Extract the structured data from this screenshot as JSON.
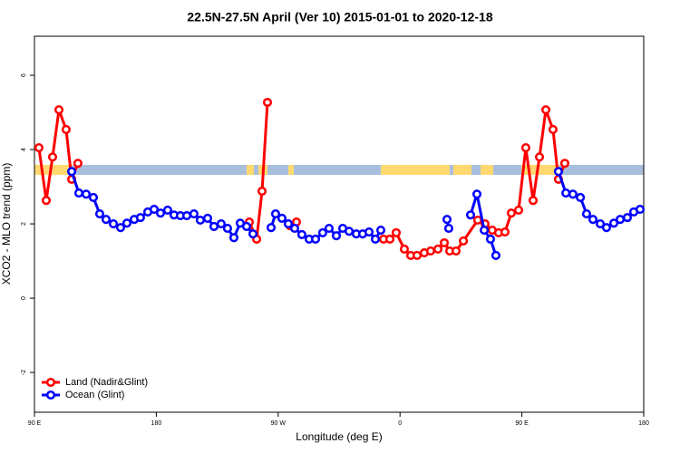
{
  "chart_data": {
    "type": "line",
    "title": "22.5N-27.5N April (Ver 10)   2015-01-01 to 2020-12-18",
    "xlabel": "Longitude (deg E)",
    "ylabel": "XCO2 - MLO trend (ppm)",
    "xlim": [
      90,
      540
    ],
    "ylim": [
      -3.07,
      7.05
    ],
    "xticks": [
      {
        "value": 90,
        "label": "90 E"
      },
      {
        "value": 180,
        "label": "180"
      },
      {
        "value": 270,
        "label": "90 W"
      },
      {
        "value": 360,
        "label": "0"
      },
      {
        "value": 450,
        "label": "90 E"
      },
      {
        "value": 540,
        "label": "180"
      }
    ],
    "yticks": [
      -2,
      0,
      2,
      4,
      6
    ],
    "legend": "bottom-left",
    "series": [
      {
        "name": "Land (Nadir&Glint)",
        "color": "#ff0000",
        "x": [
          93.3,
          98.7,
          103.4,
          108.1,
          113.4,
          117.5,
          122.1,
          150,
          248.7,
          254.1,
          258.1,
          262.1,
          305,
          278.8,
          283.5,
          380,
          347.8,
          352.5,
          357.2,
          363.2,
          367.9,
          372.6,
          377.9,
          382.6,
          388,
          392.7,
          396.7,
          401.4,
          406.8,
          417.4,
          422.8,
          428.1,
          432.8,
          437.5,
          442.2,
          447.6,
          452.9,
          458.3,
          463,
          467.7,
          473,
          477,
          481.7
        ],
        "values": [
          4.05,
          2.63,
          3.8,
          5.07,
          4.54,
          3.2,
          3.63,
          null,
          2.05,
          1.59,
          2.88,
          5.27,
          null,
          1.95,
          2.05,
          null,
          1.59,
          1.59,
          1.76,
          1.32,
          1.15,
          1.15,
          1.22,
          1.27,
          1.32,
          1.49,
          1.27,
          1.27,
          1.54,
          2.1,
          2.0,
          1.83,
          1.76,
          1.78,
          2.29,
          2.37,
          4.05,
          2.63,
          3.8,
          5.07,
          4.54,
          3.2,
          3.63
        ]
      },
      {
        "name": "Ocean (Glint)",
        "color": "#0000ff",
        "x": [
          117.5,
          122.8,
          128.2,
          133.5,
          138.2,
          142.9,
          148.3,
          153.6,
          158.3,
          163.7,
          168.3,
          173.7,
          178.4,
          183.1,
          188.4,
          193.1,
          197.8,
          202.5,
          207.8,
          212.5,
          217.9,
          222.6,
          227.9,
          232.6,
          237.3,
          242,
          246.7,
          251.4,
          290,
          264.8,
          268.1,
          272.8,
          277.5,
          282.2,
          287.5,
          292.9,
          297.6,
          302.9,
          307.6,
          313,
          317.7,
          322.4,
          327.7,
          332.4,
          337.1,
          341.8,
          345.8,
          460,
          394.7,
          396,
          505,
          412.1,
          416.8,
          422.2,
          426.8,
          430.8,
          580,
          477,
          482.5,
          487.7,
          493.2,
          497.8,
          502.5,
          507.9,
          512.5,
          517.9,
          522.6,
          527.9,
          532.6,
          537.3
        ],
        "values": [
          3.41,
          2.83,
          2.8,
          2.71,
          2.27,
          2.12,
          2.0,
          1.9,
          2.02,
          2.12,
          2.17,
          2.32,
          2.39,
          2.29,
          2.37,
          2.24,
          2.22,
          2.22,
          2.27,
          2.1,
          2.15,
          1.93,
          2.0,
          1.88,
          1.63,
          2.02,
          1.93,
          1.73,
          null,
          1.9,
          2.27,
          2.15,
          2.0,
          1.88,
          1.71,
          1.59,
          1.59,
          1.76,
          1.88,
          1.68,
          1.88,
          1.8,
          1.73,
          1.73,
          1.78,
          1.59,
          1.83,
          null,
          2.12,
          1.88,
          null,
          2.24,
          2.8,
          1.83,
          1.59,
          1.15,
          null,
          3.41,
          2.83,
          2.8,
          2.71,
          2.27,
          2.12,
          2.0,
          1.9,
          2.02,
          2.12,
          2.17,
          2.32,
          2.39
        ]
      }
    ]
  }
}
